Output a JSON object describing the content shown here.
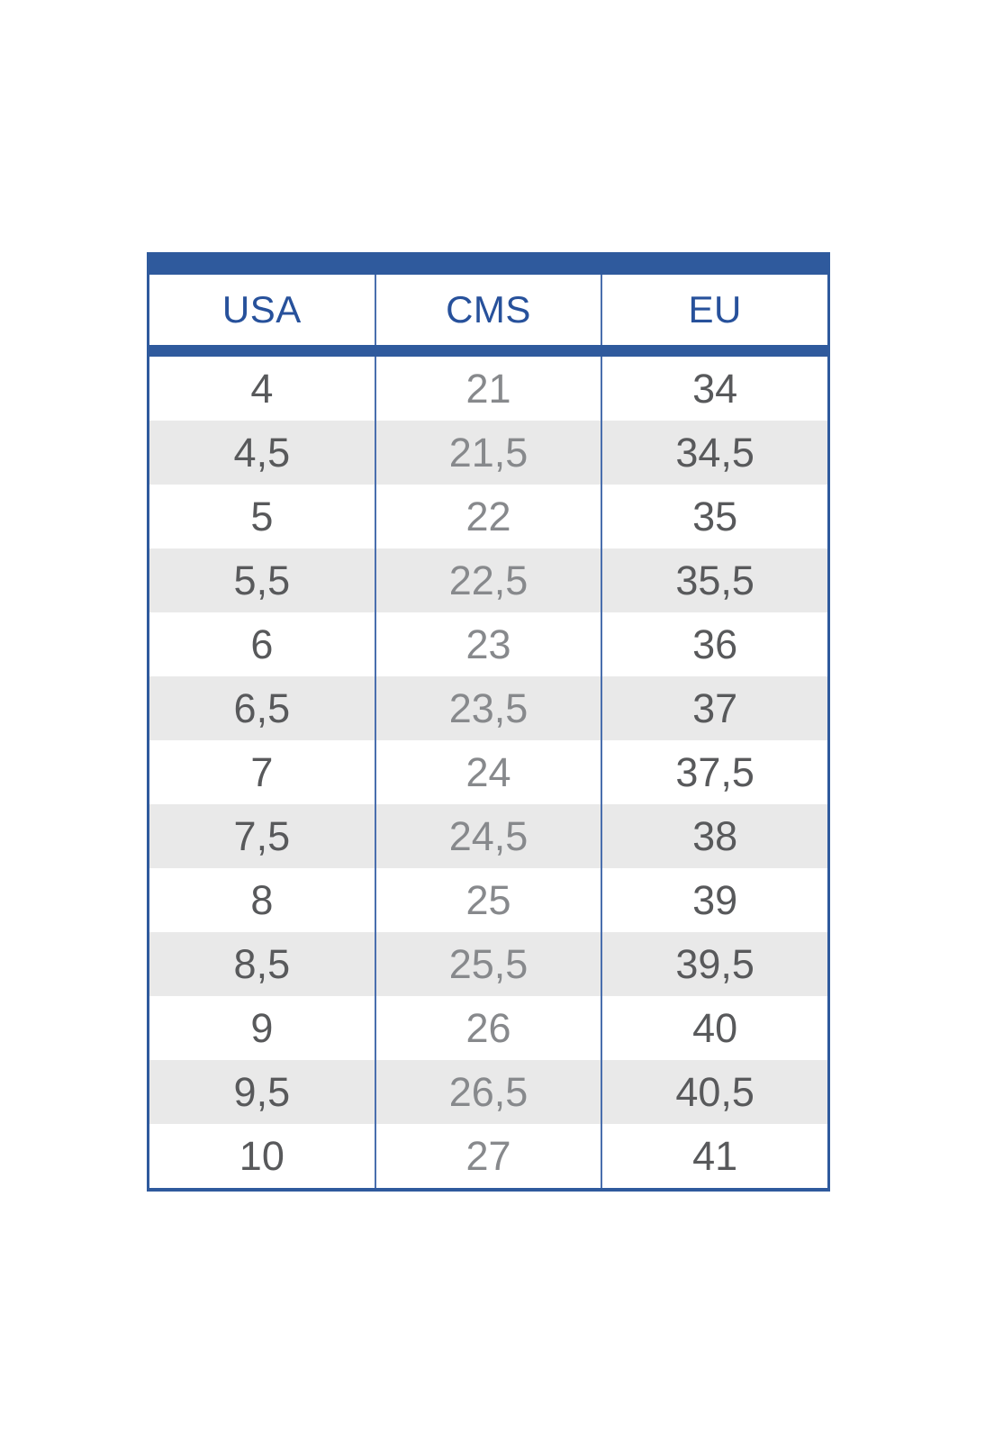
{
  "colors": {
    "accent_blue": "#2f5a9d",
    "header_text_blue": "#27519b",
    "stripe_gray": "#e9e9e9",
    "outer_column_text": "#58595b",
    "middle_column_text": "#87898c"
  },
  "table": {
    "columns": {
      "usa_label": "USA",
      "cms_label": "CMS",
      "eu_label": "EU"
    },
    "rows": [
      {
        "usa": "4",
        "cms": "21",
        "eu": "34"
      },
      {
        "usa": "4,5",
        "cms": "21,5",
        "eu": "34,5"
      },
      {
        "usa": "5",
        "cms": "22",
        "eu": "35"
      },
      {
        "usa": "5,5",
        "cms": "22,5",
        "eu": "35,5"
      },
      {
        "usa": "6",
        "cms": "23",
        "eu": "36"
      },
      {
        "usa": "6,5",
        "cms": "23,5",
        "eu": "37"
      },
      {
        "usa": "7",
        "cms": "24",
        "eu": "37,5"
      },
      {
        "usa": "7,5",
        "cms": "24,5",
        "eu": "38"
      },
      {
        "usa": "8",
        "cms": "25",
        "eu": "39"
      },
      {
        "usa": "8,5",
        "cms": "25,5",
        "eu": "39,5"
      },
      {
        "usa": "9",
        "cms": "26",
        "eu": "40"
      },
      {
        "usa": "9,5",
        "cms": "26,5",
        "eu": "40,5"
      },
      {
        "usa": "10",
        "cms": "27",
        "eu": "41"
      }
    ]
  }
}
